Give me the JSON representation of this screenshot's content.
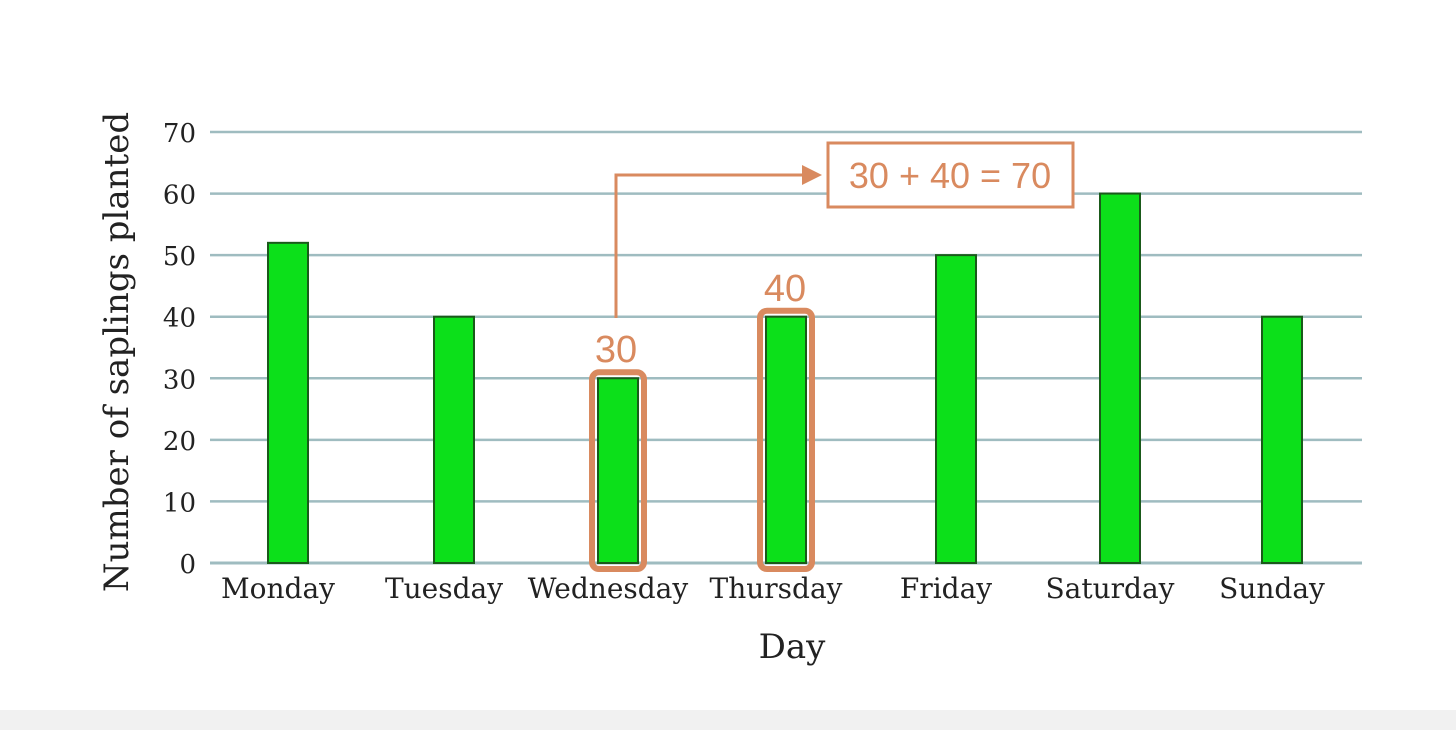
{
  "chart_data": {
    "type": "bar",
    "categories": [
      "Monday",
      "Tuesday",
      "Wednesday",
      "Thursday",
      "Friday",
      "Saturday",
      "Sunday"
    ],
    "values": [
      52,
      40,
      30,
      40,
      50,
      60,
      40
    ],
    "xlabel": "Day",
    "ylabel": "Number of saplings planted",
    "ylim": [
      0,
      70
    ],
    "yticks": [
      0,
      10,
      20,
      30,
      40,
      50,
      60,
      70
    ],
    "grid": true,
    "highlighted": [
      "Wednesday",
      "Thursday"
    ],
    "annotations": {
      "wednesday_label": "30",
      "thursday_label": "40",
      "sum_label": "30 + 40 = 70"
    }
  },
  "colors": {
    "bar_fill": "#0ce01a",
    "bar_stroke": "#1a5a1a",
    "grid": "#9fbcc0",
    "highlight": "#d98a5f",
    "text": "#222222"
  }
}
